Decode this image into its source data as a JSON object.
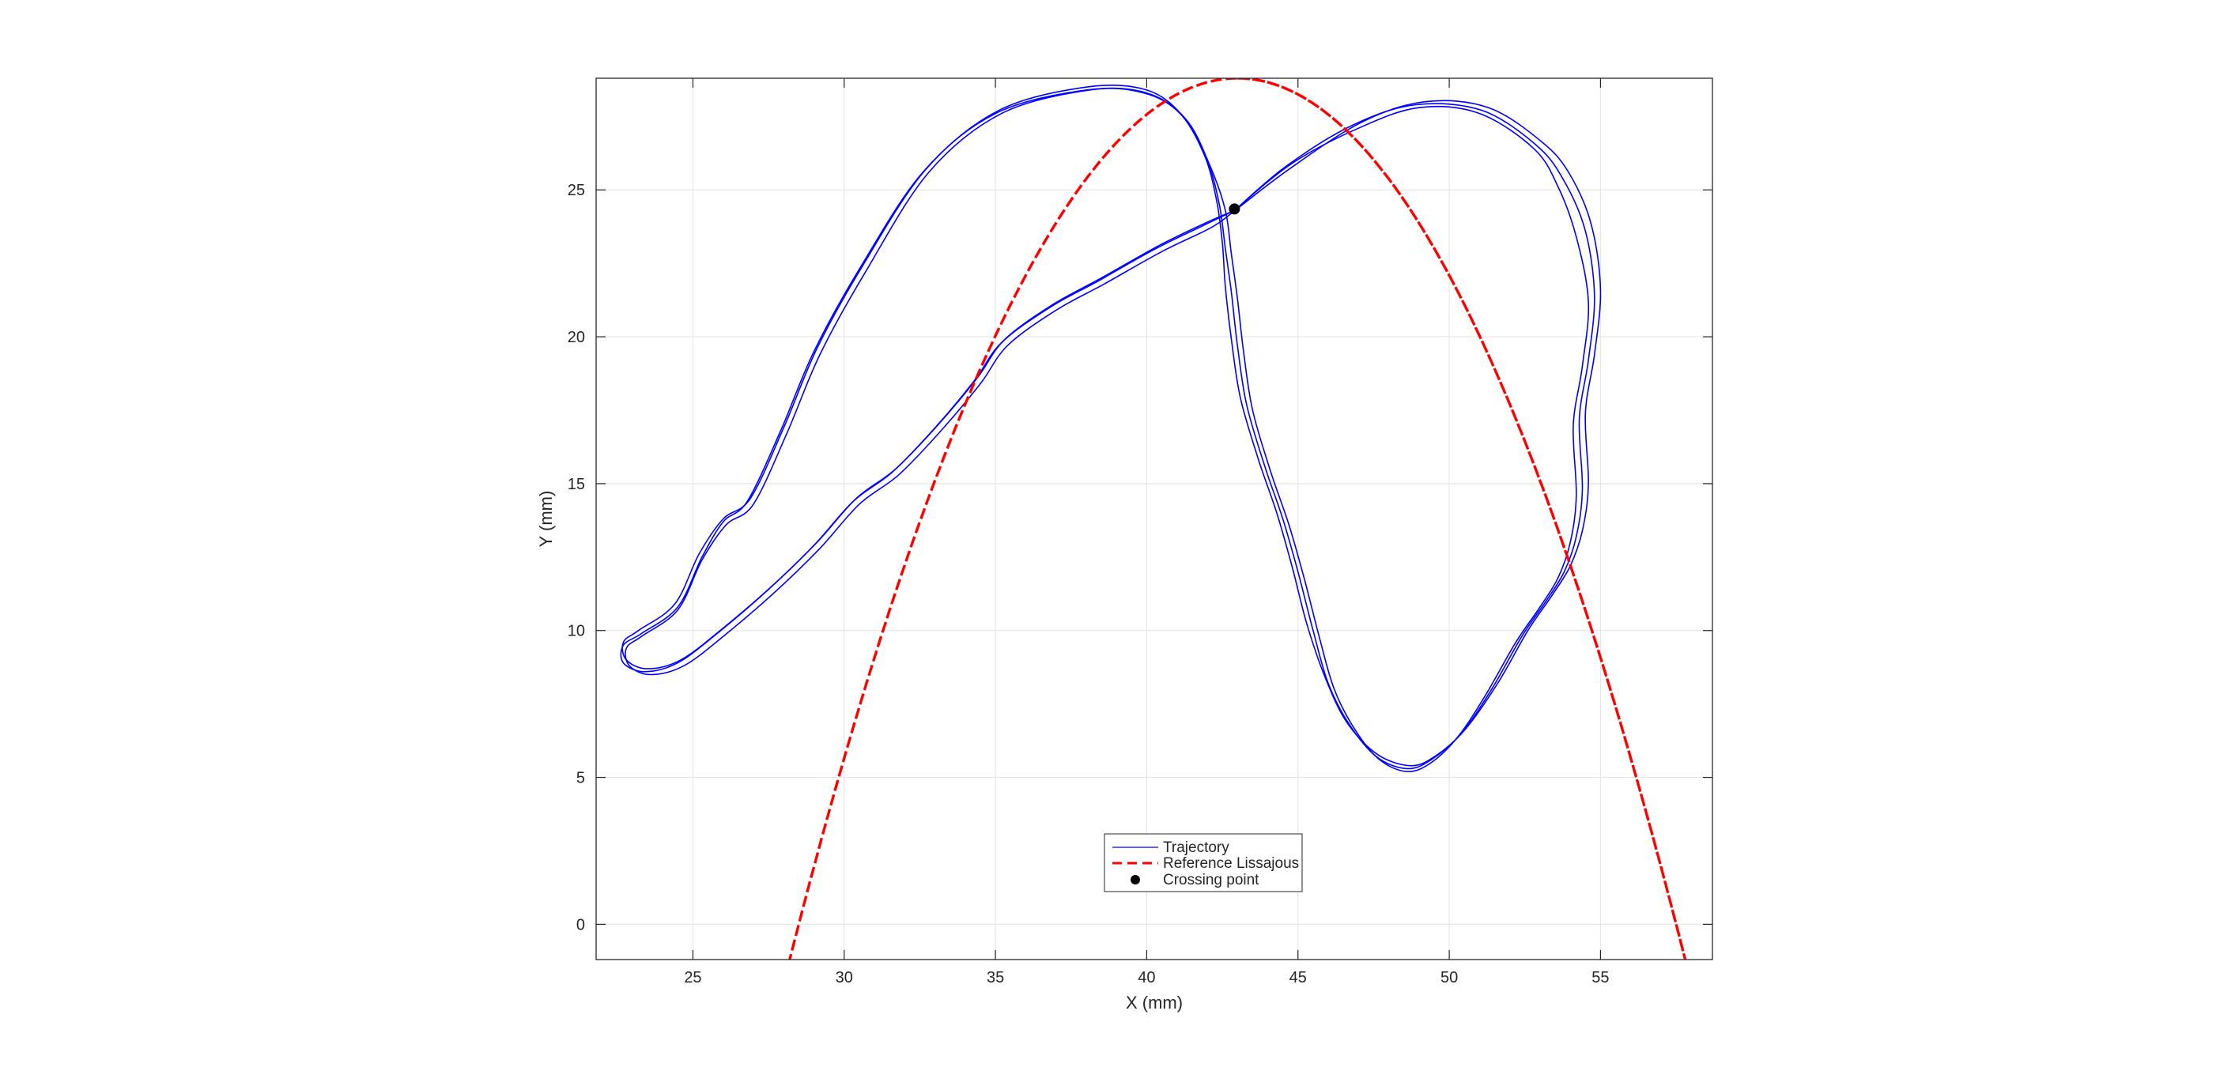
{
  "chart_data": {
    "type": "line",
    "title": "",
    "xlabel": "X (mm)",
    "ylabel": "Y (mm)",
    "xlim": [
      21.8,
      58.7
    ],
    "ylim": [
      -1.2,
      28.8
    ],
    "xticks": [
      25,
      30,
      35,
      40,
      45,
      50,
      55
    ],
    "yticks": [
      0,
      5,
      10,
      15,
      20,
      25
    ],
    "grid": true,
    "legend_position": "bottom-center",
    "series": [
      {
        "name": "Trajectory",
        "kind": "line",
        "color": "#0000ff",
        "passes": [
          {
            "x": [
              42.9,
              44.8,
              47.0,
              49.0,
              51.0,
              52.8,
              53.6,
              54.2,
              54.6,
              54.4,
              54.1,
              54.2,
              54.0,
              53.6,
              53.0,
              52.2,
              51.2,
              50.3,
              49.4,
              48.6,
              47.7,
              46.9,
              46.2,
              45.7,
              45.2,
              44.7,
              44.1,
              43.5,
              43.2,
              43.0,
              42.8,
              42.6,
              42.1,
              41.3,
              40.0,
              38.0,
              35.0,
              32.6,
              30.5,
              29.0,
              27.9,
              26.8,
              26.0,
              25.3,
              24.5,
              23.3,
              22.7,
              22.7,
              23.4,
              24.5,
              25.8,
              27.5,
              29.0,
              30.3,
              31.6,
              33.0,
              34.3,
              35.2,
              36.8,
              38.4,
              40.3,
              41.9,
              42.9
            ],
            "y": [
              24.3,
              25.9,
              27.1,
              27.8,
              27.6,
              26.4,
              25.1,
              23.4,
              21.2,
              19.0,
              17.0,
              14.6,
              13.0,
              11.8,
              10.8,
              9.6,
              7.8,
              6.4,
              5.5,
              5.2,
              5.6,
              6.6,
              8.0,
              9.8,
              11.8,
              13.6,
              15.4,
              17.5,
              19.5,
              21.3,
              22.8,
              24.3,
              25.8,
              27.4,
              28.3,
              28.4,
              27.6,
              25.6,
              22.3,
              19.5,
              16.8,
              14.4,
              13.7,
              12.5,
              10.8,
              9.9,
              9.5,
              8.9,
              8.6,
              8.9,
              9.9,
              11.4,
              12.9,
              14.4,
              15.4,
              16.9,
              18.5,
              19.8,
              21.0,
              21.9,
              23.0,
              23.8,
              24.3
            ]
          },
          {
            "x": [
              42.9,
              44.6,
              46.8,
              48.9,
              51.1,
              52.9,
              53.8,
              54.5,
              54.8,
              54.6,
              54.3,
              54.4,
              54.2,
              53.8,
              53.2,
              52.4,
              51.4,
              50.4,
              49.4,
              48.6,
              47.6,
              46.7,
              46.0,
              45.5,
              45.0,
              44.5,
              43.9,
              43.3,
              43.0,
              42.8,
              42.6,
              42.4,
              42.0,
              41.2,
              40.0,
              38.0,
              35.1,
              32.7,
              30.6,
              29.1,
              28.0,
              26.9,
              26.0,
              25.2,
              24.4,
              23.2,
              22.7,
              22.8,
              23.5,
              24.6,
              25.9,
              27.6,
              29.1,
              30.4,
              31.7,
              33.1,
              34.4,
              35.3,
              36.9,
              38.5,
              40.4,
              42.0,
              42.9
            ],
            "y": [
              24.3,
              25.8,
              27.2,
              27.9,
              27.7,
              26.5,
              25.3,
              23.6,
              21.4,
              19.2,
              17.2,
              14.8,
              13.2,
              12.0,
              11.0,
              9.8,
              8.0,
              6.5,
              5.6,
              5.3,
              5.7,
              6.8,
              8.2,
              10.0,
              12.0,
              13.8,
              15.6,
              17.7,
              19.7,
              21.5,
              23.0,
              24.5,
              26.0,
              27.5,
              28.4,
              28.5,
              27.7,
              25.7,
              22.4,
              19.6,
              16.9,
              14.5,
              13.8,
              12.6,
              10.9,
              10.0,
              9.6,
              9.0,
              8.7,
              9.0,
              10.0,
              11.5,
              13.0,
              14.5,
              15.5,
              17.0,
              18.6,
              19.9,
              21.1,
              22.0,
              23.1,
              23.9,
              24.3
            ]
          },
          {
            "x": [
              42.8,
              44.7,
              47.1,
              49.2,
              51.3,
              53.1,
              54.0,
              54.7,
              55.0,
              54.8,
              54.5,
              54.6,
              54.4,
              54.0,
              53.4,
              52.6,
              51.6,
              50.5,
              49.5,
              48.7,
              47.6,
              46.6,
              45.9,
              45.3,
              44.8,
              44.3,
              43.7,
              43.1,
              42.8,
              42.6,
              42.5,
              42.3,
              41.9,
              41.1,
              39.9,
              38.1,
              35.2,
              32.8,
              30.7,
              29.2,
              28.1,
              27.0,
              26.1,
              25.3,
              24.5,
              23.3,
              22.8,
              22.9,
              23.6,
              24.7,
              26.0,
              27.7,
              29.2,
              30.5,
              31.8,
              33.2,
              34.5,
              35.4,
              37.0,
              38.6,
              40.5,
              42.1,
              42.8
            ],
            "y": [
              24.2,
              25.7,
              27.3,
              28.0,
              27.8,
              26.6,
              25.5,
              23.8,
              21.6,
              19.4,
              17.4,
              15.0,
              13.4,
              12.2,
              11.2,
              10.0,
              8.2,
              6.6,
              5.7,
              5.4,
              5.8,
              6.9,
              8.4,
              10.2,
              12.2,
              14.0,
              15.8,
              17.9,
              19.9,
              21.7,
              23.2,
              24.7,
              26.2,
              27.6,
              28.3,
              28.4,
              27.6,
              25.6,
              22.2,
              19.4,
              16.7,
              14.3,
              13.6,
              12.4,
              10.7,
              9.8,
              9.4,
              8.8,
              8.5,
              8.8,
              9.8,
              11.3,
              12.8,
              14.3,
              15.3,
              16.8,
              18.4,
              19.7,
              20.9,
              21.8,
              22.9,
              23.7,
              24.2
            ]
          }
        ]
      },
      {
        "name": "Reference Lissajous",
        "kind": "dashed",
        "color": "#ff0000",
        "x_center": 43.0,
        "x_amplitude": 14.8,
        "y_center": 13.8,
        "y_amplitude": 15.0,
        "x_frequency": 1,
        "y_frequency": 2,
        "y_phase_deg": 90
      },
      {
        "name": "Crossing point",
        "kind": "marker",
        "color": "#000000",
        "x": [
          42.9
        ],
        "y": [
          24.35
        ]
      }
    ]
  }
}
